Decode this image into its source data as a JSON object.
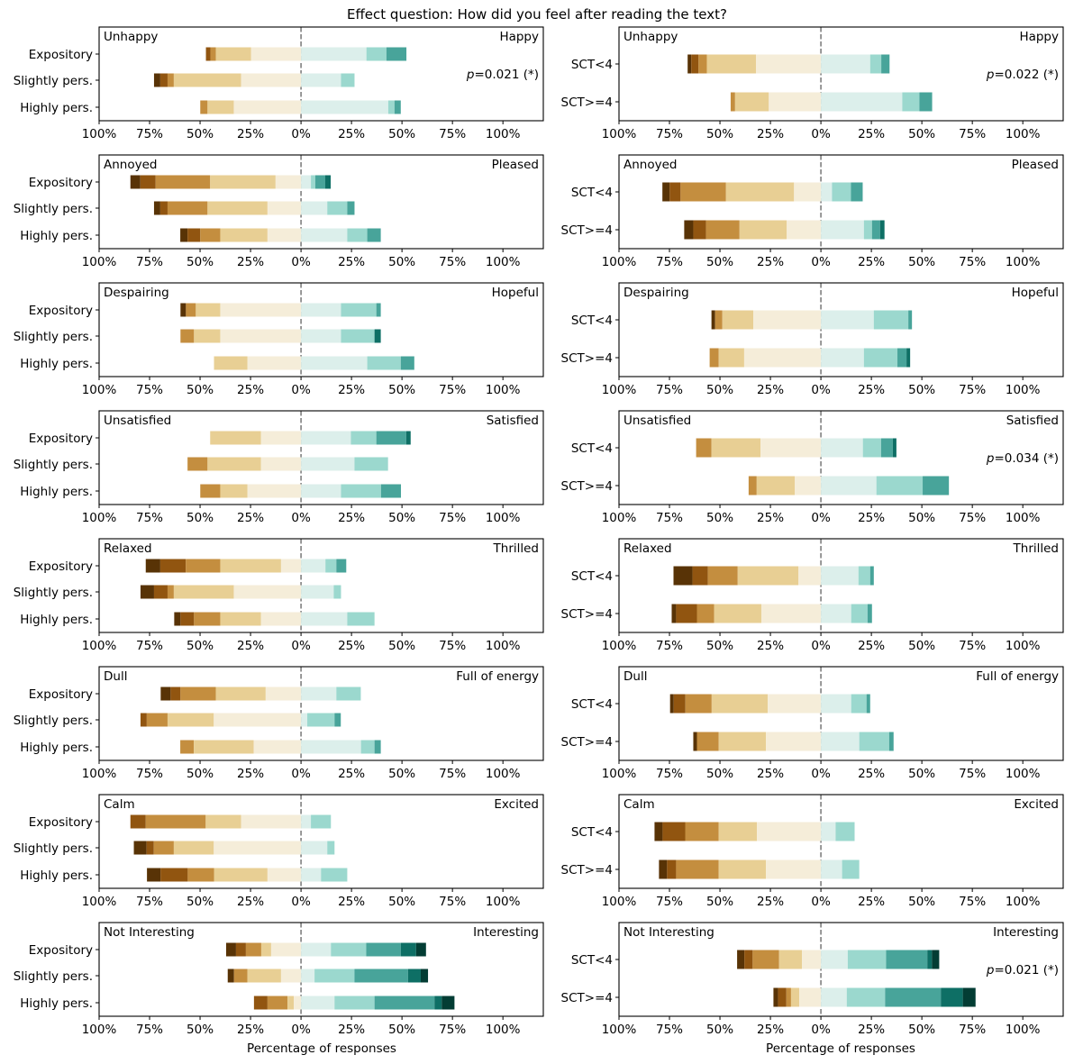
{
  "figure": {
    "title": "Effect question: How did you feel after reading the text?",
    "xlabel": "Percentage of responses"
  },
  "palette": [
    "#543005",
    "#8c510a",
    "#bf812d",
    "#dfc27d",
    "#f6e8c3",
    "#c7eae5",
    "#80cdc1",
    "#35978f",
    "#01665e",
    "#003c30"
  ],
  "palette_rendered": [
    "#583306",
    "#915510",
    "#c48e3f",
    "#e8cf94",
    "#f5edd9",
    "#dcefeb",
    "#9bd8ce",
    "#48a49a",
    "#0e6f65",
    "#033d34"
  ],
  "chart_data": {
    "type": "bar",
    "subtype": "diverging-stacked-likert",
    "orientation": "horizontal",
    "xlim": [
      -100,
      120
    ],
    "xticks": [
      -100,
      -75,
      -50,
      -25,
      0,
      25,
      50,
      75,
      100
    ],
    "xtick_labels": [
      "100%",
      "75%",
      "50%",
      "25%",
      "0%",
      "25%",
      "50%",
      "75%",
      "100%"
    ],
    "xlabel": "Percentage of responses",
    "center_line": "dashed at 0%",
    "levels": 10,
    "segments_note": "Each row lists 10 level shares (%) from most negative (level 1) to most positive (level 10); levels 1-5 extend left of 0, levels 6-10 extend right.",
    "panels": [
      {
        "column": "left",
        "left_label": "Unhappy",
        "right_label": "Happy",
        "pvalue": "=0.021 (*)",
        "rows": [
          {
            "label": "Expository",
            "levels": [
              0,
              2.2,
              2.7,
              17.5,
              24.7,
              32.4,
              9.9,
              9.9,
              0,
              0
            ]
          },
          {
            "label": "Slightly pers.",
            "levels": [
              3.1,
              3.6,
              3.1,
              33.3,
              29.7,
              19.8,
              6.7,
              0,
              0,
              0
            ]
          },
          {
            "label": "Highly pers.",
            "levels": [
              0,
              0,
              3.6,
              13.0,
              33.3,
              43.2,
              3.1,
              3.1,
              0,
              0
            ]
          }
        ]
      },
      {
        "column": "right",
        "left_label": "Unhappy",
        "right_label": "Happy",
        "pvalue": "=0.022 (*)",
        "rows": [
          {
            "label": "SCT<4",
            "levels": [
              1.8,
              3.6,
              4.1,
              24.4,
              32.1,
              24.4,
              5.5,
              4.1,
              0,
              0
            ]
          },
          {
            "label": "SCT>=4",
            "levels": [
              0,
              0,
              2.2,
              16.7,
              25.8,
              40.3,
              8.5,
              6.3,
              0,
              0
            ]
          }
        ]
      },
      {
        "column": "left",
        "left_label": "Annoyed",
        "right_label": "Pleased",
        "pvalue": "",
        "rows": [
          {
            "label": "Expository",
            "levels": [
              4.9,
              7.6,
              27.0,
              32.4,
              12.6,
              4.9,
              2.2,
              4.9,
              2.7,
              0
            ]
          },
          {
            "label": "Slightly pers.",
            "levels": [
              3.1,
              3.6,
              19.8,
              29.7,
              16.6,
              13.0,
              9.9,
              3.6,
              0,
              0
            ]
          },
          {
            "label": "Highly pers.",
            "levels": [
              3.6,
              6.3,
              9.9,
              23.4,
              16.6,
              22.9,
              9.9,
              6.7,
              0,
              0
            ]
          }
        ]
      },
      {
        "column": "right",
        "left_label": "Annoyed",
        "right_label": "Pleased",
        "pvalue": "",
        "rows": [
          {
            "label": "SCT<4",
            "levels": [
              3.6,
              5.4,
              22.5,
              33.7,
              13.3,
              5.5,
              9.4,
              5.8,
              0,
              0
            ]
          },
          {
            "label": "SCT>=4",
            "levels": [
              4.5,
              6.3,
              16.6,
              23.4,
              16.9,
              21.3,
              4.0,
              4.0,
              2.2,
              0
            ]
          }
        ]
      },
      {
        "column": "left",
        "left_label": "Despairing",
        "right_label": "Hopeful",
        "pvalue": "",
        "rows": [
          {
            "label": "Expository",
            "levels": [
              2.7,
              0,
              4.9,
              12.1,
              40.0,
              19.8,
              17.5,
              2.2,
              0,
              0
            ]
          },
          {
            "label": "Slightly pers.",
            "levels": [
              0,
              0,
              6.7,
              13.0,
              40.0,
              19.8,
              16.6,
              0,
              3.1,
              0
            ]
          },
          {
            "label": "Highly pers.",
            "levels": [
              0,
              0,
              0,
              16.6,
              26.5,
              32.8,
              16.6,
              6.7,
              0,
              0
            ]
          }
        ]
      },
      {
        "column": "right",
        "left_label": "Despairing",
        "right_label": "Hopeful",
        "pvalue": "",
        "rows": [
          {
            "label": "SCT<4",
            "levels": [
              1.8,
              0,
              3.6,
              15.3,
              33.5,
              26.2,
              17.1,
              1.8,
              0,
              0
            ]
          },
          {
            "label": "SCT>=4",
            "levels": [
              0,
              0,
              4.5,
              12.6,
              38.0,
              21.3,
              16.6,
              4.5,
              1.8,
              0
            ]
          }
        ]
      },
      {
        "column": "left",
        "left_label": "Unsatisfied",
        "right_label": "Satisfied",
        "pvalue": "",
        "rows": [
          {
            "label": "Expository",
            "levels": [
              0,
              0,
              0,
              25.2,
              19.8,
              24.7,
              12.6,
              14.8,
              2.2,
              0
            ]
          },
          {
            "label": "Slightly pers.",
            "levels": [
              0,
              0,
              9.9,
              26.5,
              19.8,
              26.5,
              16.6,
              0,
              0,
              0
            ]
          },
          {
            "label": "Highly pers.",
            "levels": [
              0,
              0,
              9.9,
              13.5,
              26.5,
              19.8,
              19.8,
              9.9,
              0,
              0
            ]
          }
        ]
      },
      {
        "column": "right",
        "left_label": "Unsatisfied",
        "right_label": "Satisfied",
        "pvalue": "=0.034 (*)",
        "rows": [
          {
            "label": "SCT<4",
            "levels": [
              0,
              0,
              7.6,
              24.3,
              29.9,
              20.8,
              9.0,
              5.8,
              1.8,
              0
            ]
          },
          {
            "label": "SCT>=4",
            "levels": [
              0,
              0,
              4.0,
              18.9,
              12.9,
              27.5,
              22.9,
              13.0,
              0,
              0
            ]
          }
        ]
      },
      {
        "column": "left",
        "left_label": "Relaxed",
        "right_label": "Thrilled",
        "pvalue": "",
        "rows": [
          {
            "label": "Expository",
            "levels": [
              7.2,
              12.6,
              17.1,
              30.1,
              9.9,
              12.1,
              5.4,
              4.9,
              0,
              0
            ]
          },
          {
            "label": "Slightly pers.",
            "levels": [
              6.7,
              6.7,
              3.1,
              29.7,
              33.3,
              16.2,
              3.6,
              0,
              0,
              0
            ]
          },
          {
            "label": "Highly pers.",
            "levels": [
              3.1,
              6.7,
              13.0,
              20.2,
              19.8,
              22.9,
              13.5,
              0,
              0,
              0
            ]
          }
        ]
      },
      {
        "column": "right",
        "left_label": "Relaxed",
        "right_label": "Thrilled",
        "pvalue": "",
        "rows": [
          {
            "label": "SCT<4",
            "levels": [
              9.4,
              7.6,
              14.8,
              30.1,
              11.1,
              18.6,
              5.8,
              1.8,
              0,
              0
            ]
          },
          {
            "label": "SCT>=4",
            "levels": [
              2.2,
              10.3,
              8.5,
              23.4,
              29.5,
              15.0,
              8.1,
              2.2,
              0,
              0
            ]
          }
        ]
      },
      {
        "column": "left",
        "left_label": "Dull",
        "right_label": "Full of energy",
        "pvalue": "",
        "rows": [
          {
            "label": "Expository",
            "levels": [
              4.9,
              4.9,
              17.5,
              24.7,
              17.5,
              17.5,
              12.1,
              0,
              0,
              0
            ]
          },
          {
            "label": "Slightly pers.",
            "levels": [
              0,
              3.1,
              10.3,
              22.9,
              43.2,
              3.1,
              13.5,
              3.1,
              0,
              0
            ]
          },
          {
            "label": "Highly pers.",
            "levels": [
              0,
              0,
              6.7,
              29.7,
              23.4,
              29.7,
              6.7,
              3.1,
              0,
              0
            ]
          }
        ]
      },
      {
        "column": "right",
        "left_label": "Dull",
        "right_label": "Full of energy",
        "pvalue": "",
        "rows": [
          {
            "label": "SCT<4",
            "levels": [
              1.8,
              5.8,
              13.0,
              27.8,
              26.3,
              15.0,
              7.6,
              1.8,
              0,
              0
            ]
          },
          {
            "label": "SCT>=4",
            "levels": [
              1.8,
              0,
              10.8,
              23.4,
              27.2,
              19.0,
              14.8,
              2.2,
              0,
              0
            ]
          }
        ]
      },
      {
        "column": "left",
        "left_label": "Calm",
        "right_label": "Excited",
        "pvalue": "",
        "rows": [
          {
            "label": "Expository",
            "levels": [
              0,
              7.6,
              29.7,
              17.5,
              29.7,
              4.9,
              9.9,
              0,
              0,
              0
            ]
          },
          {
            "label": "Slightly pers.",
            "levels": [
              6.3,
              3.6,
              9.9,
              19.8,
              43.2,
              13.0,
              3.6,
              0,
              0,
              0
            ]
          },
          {
            "label": "Highly pers.",
            "levels": [
              6.7,
              13.5,
              13.0,
              26.5,
              16.6,
              9.9,
              13.0,
              0,
              0,
              0
            ]
          }
        ]
      },
      {
        "column": "right",
        "left_label": "Calm",
        "right_label": "Excited",
        "pvalue": "",
        "rows": [
          {
            "label": "SCT<4",
            "levels": [
              4.0,
              11.2,
              16.6,
              18.9,
              31.7,
              7.3,
              9.4,
              0,
              0,
              0
            ]
          },
          {
            "label": "SCT>=4",
            "levels": [
              4.0,
              4.5,
              21.1,
              23.4,
              27.2,
              10.5,
              8.5,
              0,
              0,
              0
            ]
          }
        ]
      },
      {
        "column": "left",
        "left_label": "Not Interesting",
        "right_label": "Interesting",
        "pvalue": "",
        "rows": [
          {
            "label": "Expository",
            "levels": [
              4.9,
              4.9,
              7.6,
              4.9,
              14.8,
              14.8,
              17.5,
              17.1,
              7.6,
              4.9
            ]
          },
          {
            "label": "Slightly pers.",
            "levels": [
              3.1,
              0,
              6.7,
              16.6,
              9.9,
              6.7,
              19.8,
              26.5,
              6.3,
              3.6
            ]
          },
          {
            "label": "Highly pers.",
            "levels": [
              0,
              6.7,
              9.9,
              3.1,
              3.6,
              16.6,
              19.8,
              29.7,
              3.6,
              6.3
            ]
          }
        ]
      },
      {
        "column": "right",
        "left_label": "Not Interesting",
        "right_label": "Interesting",
        "pvalue": "=0.021 (*)",
        "rows": [
          {
            "label": "SCT<4",
            "levels": [
              3.6,
              4.1,
              13.1,
              11.3,
              9.4,
              13.3,
              19.0,
              20.4,
              2.3,
              3.6
            ]
          },
          {
            "label": "SCT>=4",
            "levels": [
              2.3,
              4.1,
              2.3,
              4.1,
              10.7,
              12.8,
              19.0,
              27.6,
              10.9,
              6.3
            ]
          }
        ]
      }
    ]
  }
}
